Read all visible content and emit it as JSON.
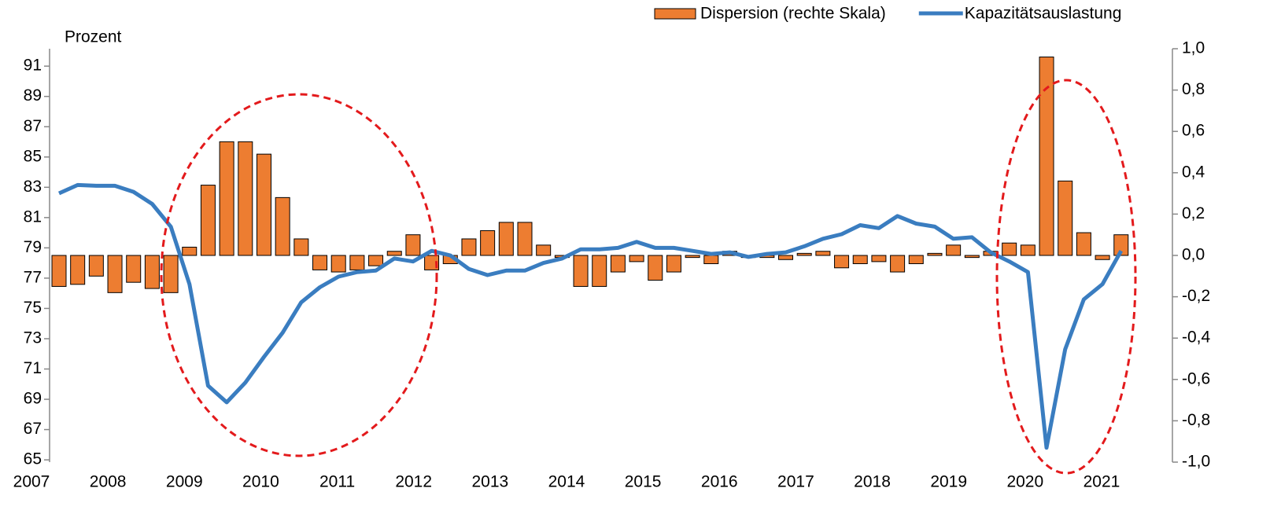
{
  "chart_data": {
    "type": "bar-line",
    "y_label": "Prozent",
    "legend": "top-right",
    "categories": [
      "2007",
      null,
      null,
      null,
      "2008",
      null,
      null,
      null,
      "2009",
      null,
      null,
      null,
      "2010",
      null,
      null,
      null,
      "2011",
      null,
      null,
      null,
      "2012",
      null,
      null,
      null,
      "2013",
      null,
      null,
      null,
      "2014",
      null,
      null,
      null,
      "2015",
      null,
      null,
      null,
      "2016",
      null,
      null,
      null,
      "2017",
      null,
      null,
      null,
      "2018",
      null,
      null,
      null,
      "2019",
      null,
      null,
      null,
      "2020",
      null,
      null,
      null,
      "2021",
      null
    ],
    "series": [
      {
        "name": "Dispersion (rechte Skala)",
        "type": "bar",
        "axis": "y2",
        "color": "#ed7d31",
        "values": [
          -0.15,
          -0.14,
          -0.1,
          -0.18,
          -0.13,
          -0.16,
          -0.18,
          0.04,
          0.34,
          0.55,
          0.55,
          0.49,
          0.28,
          0.08,
          -0.07,
          -0.08,
          -0.07,
          -0.05,
          0.02,
          0.1,
          -0.07,
          -0.04,
          0.08,
          0.12,
          0.16,
          0.16,
          0.05,
          -0.01,
          -0.15,
          -0.15,
          -0.08,
          -0.03,
          -0.12,
          -0.08,
          -0.01,
          -0.04,
          0.02,
          -0.01,
          -0.01,
          -0.02,
          0.01,
          0.02,
          -0.06,
          -0.04,
          -0.03,
          -0.08,
          -0.04,
          0.01,
          0.05,
          -0.01,
          0.02,
          0.06,
          0.05,
          0.96,
          0.36,
          0.11,
          -0.02,
          0.1
        ]
      },
      {
        "name": "Kapazitätsauslastung",
        "type": "line",
        "axis": "y",
        "color": "#3a7dc0",
        "values": [
          82.6,
          83.15,
          83.1,
          83.1,
          82.7,
          81.9,
          80.4,
          76.6,
          69.9,
          68.8,
          70.1,
          71.8,
          73.4,
          75.4,
          76.4,
          77.1,
          77.4,
          77.5,
          78.3,
          78.1,
          78.8,
          78.5,
          77.6,
          77.2,
          77.5,
          77.5,
          78.0,
          78.3,
          78.9,
          78.9,
          79.0,
          79.4,
          79.0,
          79.0,
          78.8,
          78.6,
          78.7,
          78.4,
          78.6,
          78.7,
          79.1,
          79.6,
          79.9,
          80.5,
          80.3,
          81.1,
          80.6,
          80.4,
          79.6,
          79.7,
          78.7,
          78.1,
          77.4,
          65.8,
          72.3,
          75.6,
          76.6,
          78.8
        ]
      }
    ],
    "ylim": [
      64.85,
      92.15
    ],
    "yticks": [
      65,
      67,
      69,
      71,
      73,
      75,
      77,
      79,
      81,
      83,
      85,
      87,
      89,
      91
    ],
    "y2lim": [
      -1,
      1
    ],
    "y2ticks": [
      {
        "value": -1.0,
        "label": "-1,0"
      },
      {
        "value": -0.8,
        "label": "-0,8"
      },
      {
        "value": -0.6,
        "label": "-0,6"
      },
      {
        "value": -0.4,
        "label": "-0,4"
      },
      {
        "value": -0.2,
        "label": "-0,2"
      },
      {
        "value": 0.0,
        "label": "0,0"
      },
      {
        "value": 0.2,
        "label": "0,2"
      },
      {
        "value": 0.4,
        "label": "0,4"
      },
      {
        "value": 0.6,
        "label": "0,6"
      },
      {
        "value": 0.8,
        "label": "0,8"
      },
      {
        "value": 1.0,
        "label": "1,0"
      }
    ]
  }
}
